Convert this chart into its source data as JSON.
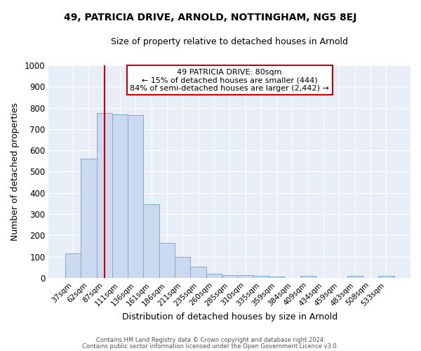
{
  "title1": "49, PATRICIA DRIVE, ARNOLD, NOTTINGHAM, NG5 8EJ",
  "title2": "Size of property relative to detached houses in Arnold",
  "xlabel": "Distribution of detached houses by size in Arnold",
  "ylabel": "Number of detached properties",
  "bar_labels": [
    "37sqm",
    "62sqm",
    "87sqm",
    "111sqm",
    "136sqm",
    "161sqm",
    "186sqm",
    "211sqm",
    "235sqm",
    "260sqm",
    "285sqm",
    "310sqm",
    "335sqm",
    "359sqm",
    "384sqm",
    "409sqm",
    "434sqm",
    "459sqm",
    "483sqm",
    "508sqm",
    "533sqm"
  ],
  "bar_values": [
    115,
    560,
    775,
    770,
    765,
    345,
    165,
    98,
    52,
    20,
    13,
    13,
    10,
    5,
    0,
    8,
    0,
    0,
    8,
    0,
    8
  ],
  "bar_color": "#ccd9ee",
  "bar_edge_color": "#7aadd4",
  "fig_background": "#ffffff",
  "ax_background": "#e8eef8",
  "grid_color": "#ffffff",
  "vline_x": 2.0,
  "vline_color": "#cc0000",
  "annotation_title": "49 PATRICIA DRIVE: 80sqm",
  "annotation_line1": "← 15% of detached houses are smaller (444)",
  "annotation_line2": "84% of semi-detached houses are larger (2,442) →",
  "annotation_box_color": "#ffffff",
  "annotation_box_edge": "#cc0000",
  "ylim": [
    0,
    1000
  ],
  "yticks": [
    0,
    100,
    200,
    300,
    400,
    500,
    600,
    700,
    800,
    900,
    1000
  ],
  "footer1": "Contains HM Land Registry data © Crown copyright and database right 2024.",
  "footer2": "Contains public sector information licensed under the Open Government Licence v3.0."
}
